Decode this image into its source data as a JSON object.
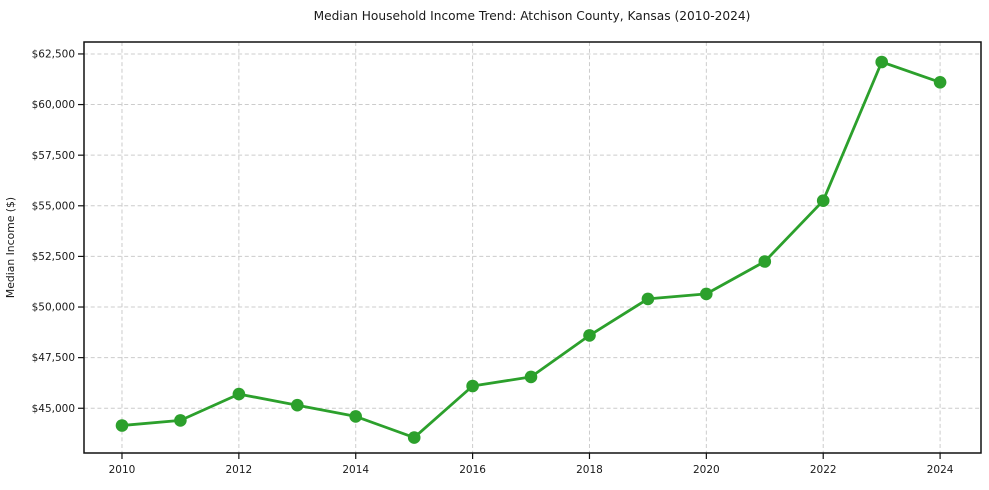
{
  "chart_data": {
    "type": "line",
    "title": "Median Household Income Trend: Atchison County, Kansas (2010-2024)",
    "ylabel": "Median Income ($)",
    "xlabel": "",
    "series_name": "Median Household Income",
    "x": [
      2010,
      2011,
      2012,
      2013,
      2014,
      2015,
      2016,
      2017,
      2018,
      2019,
      2020,
      2021,
      2022,
      2023,
      2024
    ],
    "values": [
      44150,
      44400,
      45700,
      45150,
      44600,
      43550,
      46100,
      46550,
      48600,
      50400,
      50650,
      52250,
      55250,
      62100,
      61100
    ],
    "line_color": "#2ca02c",
    "marker": "circle",
    "grid": "dashed",
    "grid_color": "#cccccc",
    "spine_color": "#111111",
    "legend": "none",
    "xlim": [
      2009.35,
      2024.7
    ],
    "ylim": [
      42790,
      63090
    ],
    "yticks": {
      "values": [
        45000,
        47500,
        50000,
        52500,
        55000,
        57500,
        60000,
        62500
      ],
      "labels": [
        "$45,000",
        "$47,500",
        "$50,000",
        "$52,500",
        "$55,000",
        "$57,500",
        "$60,000",
        "$62,500"
      ]
    },
    "xticks": {
      "values": [
        2010,
        2012,
        2014,
        2016,
        2018,
        2020,
        2022,
        2024
      ],
      "labels": [
        "2010",
        "2012",
        "2014",
        "2016",
        "2018",
        "2020",
        "2022",
        "2024"
      ]
    }
  }
}
